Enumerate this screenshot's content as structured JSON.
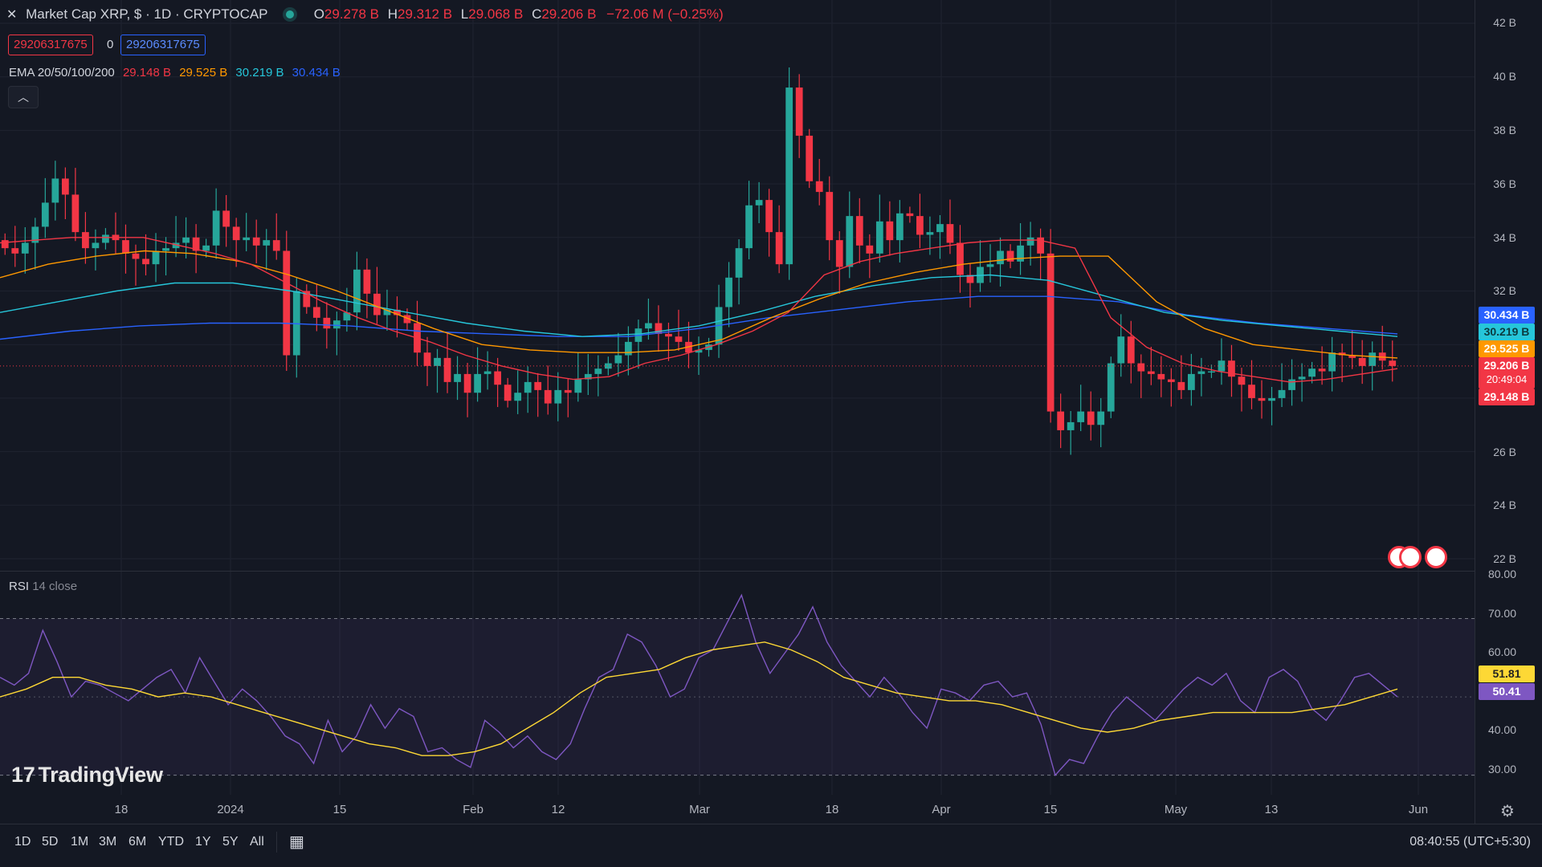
{
  "header": {
    "close_icon": "close-icon",
    "symbol_line": "Market Cap XRP, $ · 1D · CRYPTOCAP",
    "status_color": "#26a69a",
    "ohlc": {
      "o_label": "O",
      "o_value": "29.278 B",
      "h_label": "H",
      "h_value": "29.312 B",
      "l_label": "L",
      "l_value": "29.068 B",
      "c_label": "C",
      "c_value": "29.206 B",
      "change": "−72.06 M (−0.25%)"
    },
    "sell_value": "29206317675",
    "spread": "0",
    "buy_value": "29206317675"
  },
  "ema": {
    "label": "EMA 20/50/100/200",
    "v20": "29.148 B",
    "v50": "29.525 B",
    "v100": "30.219 B",
    "v200": "30.434 B",
    "c20": "#f23645",
    "c50": "#ff9800",
    "c100": "#26c6da",
    "c200": "#2962ff"
  },
  "price_axis": [
    "42 B",
    "40 B",
    "38 B",
    "36 B",
    "34 B",
    "32 B",
    "26 B",
    "24 B",
    "22 B"
  ],
  "price_tags": {
    "ema200": "30.434 B",
    "ema100": "30.219 B",
    "ema50": "29.525 B",
    "last": "29.206 B",
    "countdown": "20:49:04",
    "ema20": "29.148 B"
  },
  "rsi": {
    "label": "RSI",
    "params": "14 close",
    "axis": [
      "80.00",
      "70.00",
      "60.00",
      "40.00",
      "30.00"
    ],
    "rsi_value": "50.41",
    "ma_value": "51.81",
    "rsi_color": "#7e57c2",
    "ma_color": "#fdd835"
  },
  "time_axis": [
    "18",
    "2024",
    "15",
    "Feb",
    "12",
    "Mar",
    "18",
    "Apr",
    "15",
    "May",
    "13",
    "Jun"
  ],
  "brand": {
    "logo": "17",
    "name": "TradingView"
  },
  "toolbar": {
    "ranges": [
      "1D",
      "5D",
      "1M",
      "3M",
      "6M",
      "YTD",
      "1Y",
      "5Y",
      "All"
    ],
    "compare_icon": "calendar-range-icon",
    "clock": "08:40:55 (UTC+5:30)",
    "settings_icon": "gear-icon"
  },
  "chart_data": {
    "type": "candlestick",
    "title": "Market Cap XRP, $ · 1D · CRYPTOCAP",
    "ylabel": "",
    "ylim": [
      22,
      42
    ],
    "y_unit": "B",
    "candles_close_approx": [
      33.6,
      33.4,
      33.8,
      34.4,
      35.3,
      36.2,
      35.6,
      34.2,
      33.6,
      33.8,
      34.1,
      33.9,
      33.4,
      33.2,
      33.0,
      33.5,
      33.6,
      33.8,
      34.0,
      33.5,
      33.7,
      35.0,
      34.4,
      33.9,
      34.0,
      33.7,
      33.9,
      33.5,
      29.6,
      32.0,
      31.4,
      31.0,
      30.6,
      30.9,
      31.2,
      32.8,
      31.9,
      31.1,
      31.3,
      31.1,
      30.8,
      29.7,
      29.2,
      29.5,
      28.6,
      28.9,
      28.2,
      28.9,
      29.0,
      28.5,
      27.9,
      28.2,
      28.6,
      28.3,
      27.8,
      28.3,
      28.2,
      28.7,
      28.9,
      29.1,
      29.3,
      29.6,
      30.1,
      30.6,
      30.8,
      30.4,
      30.3,
      30.1,
      29.7,
      29.8,
      30.0,
      31.4,
      32.5,
      33.6,
      35.2,
      35.4,
      34.2,
      33.0,
      39.6,
      37.8,
      36.1,
      35.7,
      33.9,
      32.9,
      34.8,
      33.7,
      33.4,
      34.6,
      33.9,
      34.9,
      34.8,
      34.1,
      34.2,
      34.5,
      33.8,
      32.6,
      32.3,
      32.9,
      33.0,
      33.5,
      33.1,
      33.7,
      34.0,
      33.4,
      27.5,
      26.8,
      27.1,
      27.5,
      27.0,
      27.5,
      29.3,
      30.3,
      29.3,
      29.0,
      28.9,
      28.7,
      28.6,
      28.3,
      28.9,
      29.0,
      29.0,
      29.4,
      28.8,
      28.5,
      28.0,
      27.9,
      28.0,
      28.3,
      28.7,
      28.8,
      29.1,
      29.0,
      29.7,
      29.6,
      29.5,
      29.2,
      29.7,
      29.4,
      29.2
    ],
    "ema20_approx": [
      33.8,
      33.9,
      34.0,
      34.0,
      34.0,
      33.7,
      33.4,
      33.0,
      32.3,
      31.6,
      31.0,
      30.5,
      30.1,
      29.6,
      29.2,
      28.9,
      28.7,
      28.8,
      29.3,
      29.6,
      30.0,
      30.5,
      31.2,
      32.6,
      33.1,
      33.4,
      33.6,
      33.8,
      33.9,
      33.9,
      33.6,
      31.0,
      29.9,
      29.3,
      29.0,
      28.8,
      28.6,
      28.7,
      28.9,
      29.1
    ],
    "ema50_approx": [
      32.5,
      33.0,
      33.3,
      33.5,
      33.4,
      33.1,
      32.6,
      32.0,
      31.3,
      30.6,
      30.0,
      29.8,
      29.7,
      29.7,
      29.8,
      30.2,
      31.0,
      31.7,
      32.3,
      32.7,
      33.0,
      33.2,
      33.3,
      33.3,
      31.6,
      30.6,
      30.0,
      29.8,
      29.6,
      29.5
    ],
    "ema100_approx": [
      31.2,
      31.6,
      32.0,
      32.3,
      32.3,
      32.0,
      31.6,
      31.2,
      30.8,
      30.5,
      30.3,
      30.4,
      30.7,
      31.2,
      31.8,
      32.2,
      32.5,
      32.6,
      32.4,
      31.8,
      31.2,
      30.9,
      30.7,
      30.5,
      30.3
    ],
    "ema200_approx": [
      30.2,
      30.5,
      30.7,
      30.8,
      30.8,
      30.7,
      30.5,
      30.4,
      30.3,
      30.3,
      30.6,
      31.0,
      31.3,
      31.6,
      31.8,
      31.8,
      31.6,
      31.1,
      30.8,
      30.6,
      30.4
    ],
    "rsi_series_approx": [
      55,
      53,
      56,
      67,
      59,
      50,
      54,
      53,
      51,
      49,
      52,
      55,
      57,
      51,
      60,
      54,
      48,
      52,
      49,
      45,
      40,
      38,
      33,
      44,
      36,
      40,
      48,
      42,
      47,
      45,
      36,
      37,
      34,
      32,
      44,
      41,
      37,
      40,
      36,
      34,
      38,
      47,
      55,
      57,
      66,
      64,
      58,
      50,
      52,
      60,
      62,
      69,
      76,
      64,
      56,
      61,
      66,
      73,
      64,
      58,
      54,
      50,
      55,
      51,
      46,
      42,
      52,
      51,
      49,
      53,
      54,
      50,
      51,
      43,
      30,
      34,
      33,
      40,
      46,
      50,
      47,
      44,
      48,
      52,
      55,
      53,
      56,
      49,
      46,
      55,
      57,
      54,
      47,
      44,
      49,
      55,
      56,
      53,
      50
    ],
    "rsi_ma_approx": [
      50,
      52,
      55,
      55,
      53,
      52,
      50,
      51,
      50,
      48,
      46,
      44,
      42,
      40,
      38,
      37,
      35,
      35,
      36,
      38,
      42,
      46,
      51,
      55,
      56,
      57,
      60,
      62,
      63,
      64,
      62,
      59,
      55,
      53,
      51,
      50,
      49,
      49,
      48,
      46,
      44,
      42,
      41,
      42,
      44,
      45,
      46,
      46,
      46,
      46,
      47,
      48,
      50,
      52
    ]
  }
}
